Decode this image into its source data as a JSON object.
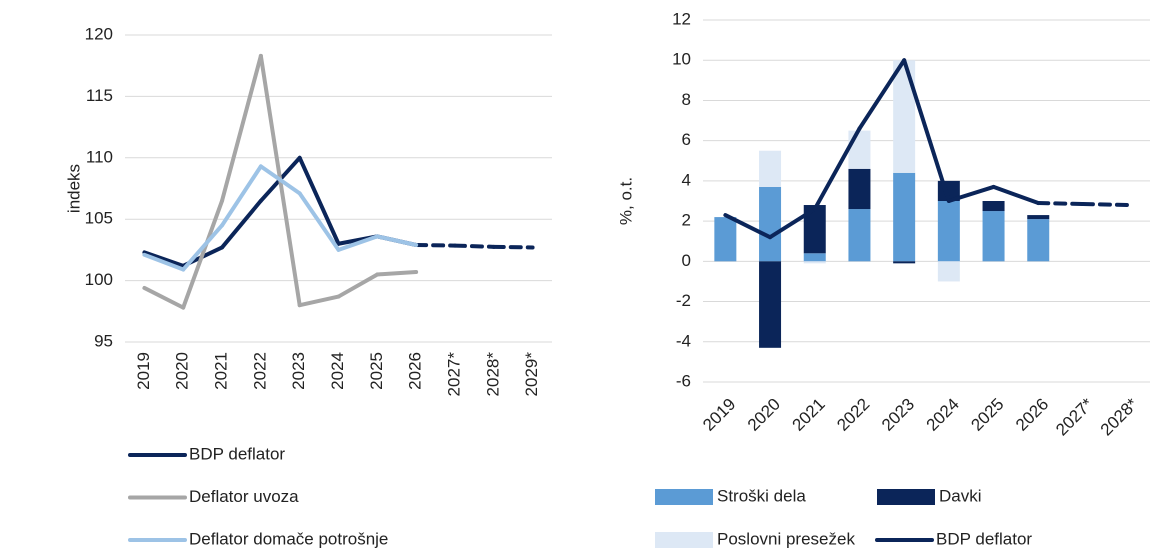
{
  "chart_data": [
    {
      "type": "line",
      "y_label": "indeks",
      "categories": [
        "2019",
        "2020",
        "2021",
        "2022",
        "2023",
        "2024",
        "2025",
        "2026",
        "2027*",
        "2028*",
        "2029*"
      ],
      "series": [
        {
          "name": "BDP deflator",
          "color": "#0b2559",
          "values": [
            102.3,
            101.2,
            102.7,
            106.5,
            110.0,
            103.0,
            103.6,
            102.9,
            102.85,
            102.75,
            102.7
          ]
        },
        {
          "name": "Deflator uvoza",
          "color": "#a6a6a6",
          "values": [
            99.4,
            97.8,
            106.5,
            118.3,
            98.0,
            98.7,
            100.5,
            100.7,
            null,
            null,
            null
          ]
        },
        {
          "name": "Deflator domače potrošnje",
          "color": "#9dc3e6",
          "values": [
            102.1,
            100.9,
            104.5,
            109.3,
            107.1,
            102.5,
            103.6,
            102.9,
            null,
            null,
            null
          ]
        }
      ],
      "ylim": [
        95,
        120
      ],
      "yticks": [
        95,
        100,
        105,
        110,
        115,
        120
      ],
      "grid": true,
      "forecast_style": "dashed"
    },
    {
      "type": "bar",
      "stacked": true,
      "y_label": "%, o.t.",
      "categories": [
        "2019",
        "2020",
        "2021",
        "2022",
        "2023",
        "2024",
        "2025",
        "2026",
        "2027*",
        "2028*"
      ],
      "series": [
        {
          "name": "Stroški dela",
          "color": "#5b9bd5",
          "type": "bar",
          "values": [
            2.2,
            3.7,
            0.4,
            2.6,
            4.4,
            3.0,
            2.5,
            2.1,
            null,
            null
          ]
        },
        {
          "name": "Davki",
          "color": "#0b2559",
          "type": "bar",
          "values": [
            0,
            -4.3,
            2.4,
            2.0,
            -0.1,
            1.0,
            0.5,
            0.2,
            null,
            null
          ]
        },
        {
          "name": "Poslovni presežek",
          "color": "#dde8f5",
          "type": "bar",
          "values": [
            0,
            1.8,
            -0.1,
            1.9,
            5.6,
            -1.0,
            0,
            0,
            null,
            null
          ]
        },
        {
          "name": "BDP deflator",
          "color": "#0b2559",
          "type": "line",
          "values": [
            2.3,
            1.2,
            2.6,
            6.6,
            10.0,
            3.0,
            3.7,
            2.9,
            2.85,
            2.8
          ]
        }
      ],
      "ylim": [
        -6,
        12
      ],
      "yticks": [
        -6,
        -4,
        -2,
        0,
        2,
        4,
        6,
        8,
        10,
        12
      ],
      "grid": true,
      "forecast_style": "dashed"
    }
  ]
}
